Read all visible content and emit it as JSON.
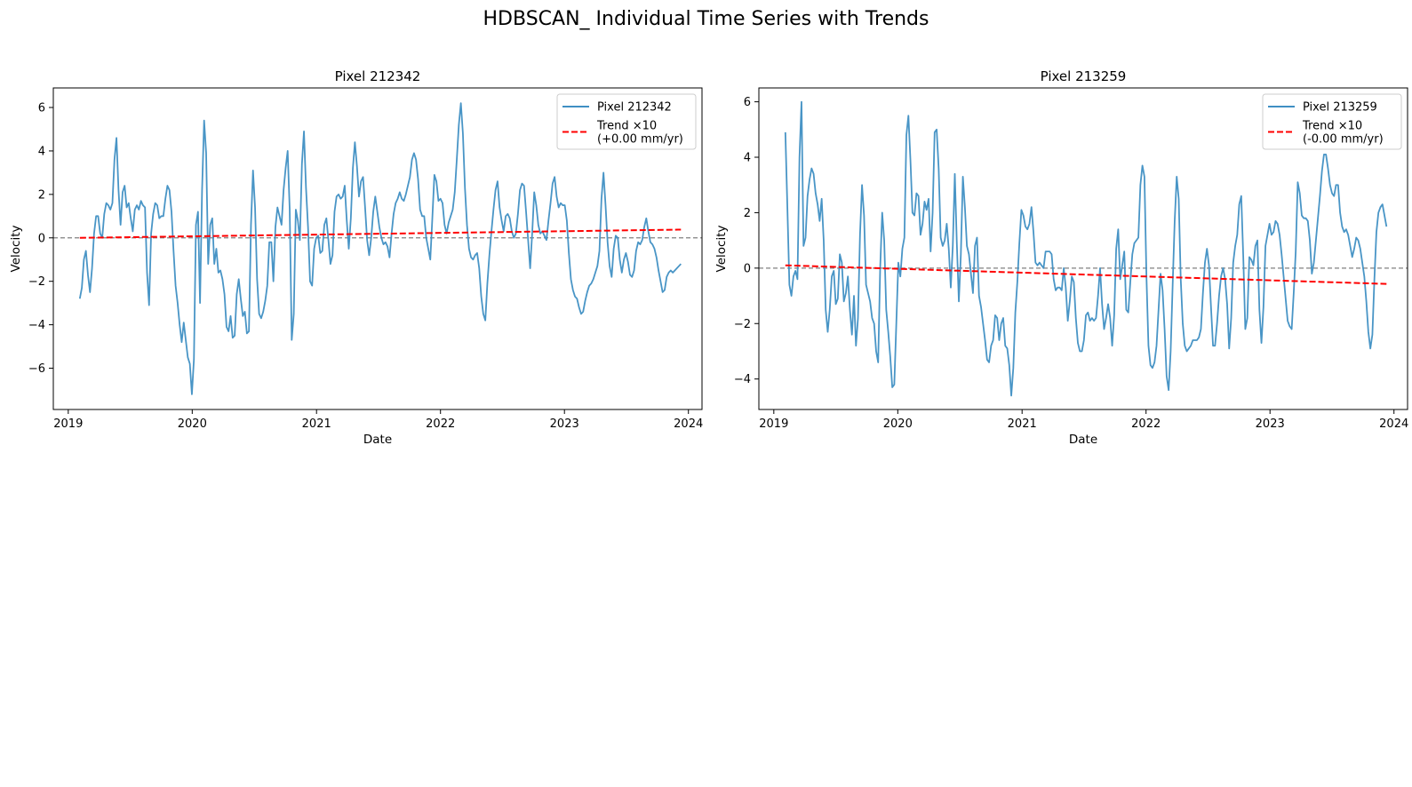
{
  "figure": {
    "title": "HDBSCAN_ Individual Time Series with Trends"
  },
  "chart_data": [
    {
      "type": "line",
      "title": "Pixel 212342",
      "xlabel": "Date",
      "ylabel": "Velocity",
      "x_ticks": [
        "2019",
        "2020",
        "2021",
        "2022",
        "2023",
        "2024"
      ],
      "y_ticks": [
        -6,
        -4,
        -2,
        0,
        2,
        4,
        6
      ],
      "xlim": [
        "2018-11-18",
        "2024-02-10"
      ],
      "ylim": [
        -7.9,
        6.9
      ],
      "grid": false,
      "legend_position": "upper right",
      "zero_line": 0,
      "series": [
        {
          "name": "Pixel 212342",
          "color": "#3f8fc3",
          "style": "solid",
          "x_start": "2019-02-04",
          "x_end": "2023-12-10",
          "values": [
            -2.8,
            -2.3,
            -1.0,
            -0.6,
            -1.7,
            -2.5,
            -1.4,
            0.2,
            1.0,
            1.0,
            0.2,
            0.0,
            1.1,
            1.6,
            1.5,
            1.3,
            1.6,
            3.6,
            4.6,
            2.2,
            0.6,
            2.1,
            2.4,
            1.4,
            1.6,
            0.9,
            0.3,
            1.3,
            1.5,
            1.3,
            1.7,
            1.5,
            1.4,
            -1.6,
            -3.1,
            0.2,
            1.1,
            1.6,
            1.5,
            0.9,
            1.0,
            1.0,
            1.8,
            2.4,
            2.2,
            1.2,
            -0.6,
            -2.2,
            -3.0,
            -4.0,
            -4.8,
            -3.9,
            -4.7,
            -5.5,
            -5.8,
            -7.2,
            -5.6,
            0.6,
            1.2,
            -3.0,
            2.2,
            5.4,
            3.9,
            -1.2,
            0.6,
            0.9,
            -1.2,
            -0.5,
            -1.6,
            -1.5,
            -1.9,
            -2.6,
            -4.1,
            -4.3,
            -3.6,
            -4.6,
            -4.5,
            -2.6,
            -1.9,
            -2.8,
            -3.6,
            -3.4,
            -4.4,
            -4.3,
            0.6,
            3.1,
            1.4,
            -1.9,
            -3.5,
            -3.7,
            -3.4,
            -2.9,
            -2.2,
            -0.2,
            -0.2,
            -2.0,
            0.5,
            1.4,
            1.0,
            0.6,
            2.2,
            3.2,
            4.0,
            1.3,
            -4.7,
            -3.5,
            1.3,
            0.8,
            -0.1,
            3.4,
            4.9,
            2.3,
            0.5,
            -2.0,
            -2.2,
            -0.5,
            0.0,
            0.1,
            -0.7,
            -0.6,
            0.6,
            0.9,
            -0.1,
            -1.2,
            -0.8,
            1.2,
            1.9,
            2.0,
            1.8,
            1.9,
            2.4,
            0.8,
            -0.5,
            0.9,
            3.2,
            4.4,
            3.3,
            1.9,
            2.6,
            2.8,
            1.4,
            -0.1,
            -0.8,
            0.0,
            1.2,
            1.9,
            1.2,
            0.5,
            0.0,
            -0.3,
            -0.2,
            -0.4,
            -0.9,
            0.2,
            1.1,
            1.6,
            1.8,
            2.1,
            1.8,
            1.7,
            2.0,
            2.4,
            2.8,
            3.6,
            3.9,
            3.6,
            2.7,
            1.3,
            1.0,
            1.0,
            0.0,
            -0.5,
            -1.0,
            0.9,
            2.9,
            2.6,
            1.7,
            1.8,
            1.6,
            0.6,
            0.2,
            0.7,
            1.0,
            1.3,
            2.1,
            3.6,
            5.2,
            6.2,
            4.8,
            2.3,
            0.6,
            -0.5,
            -0.9,
            -1.0,
            -0.8,
            -0.7,
            -1.4,
            -2.7,
            -3.5,
            -3.8,
            -2.1,
            -0.8,
            0.3,
            1.3,
            2.2,
            2.6,
            1.4,
            0.8,
            0.3,
            1.0,
            1.1,
            0.9,
            0.3,
            0.0,
            0.2,
            1.1,
            2.2,
            2.5,
            2.4,
            1.2,
            -0.1,
            -1.4,
            0.2,
            2.1,
            1.5,
            0.6,
            0.2,
            0.3,
            0.1,
            -0.1,
            0.8,
            1.6,
            2.5,
            2.8,
            1.9,
            1.4,
            1.6,
            1.5,
            1.5,
            0.8,
            -0.7,
            -1.9,
            -2.4,
            -2.7,
            -2.8,
            -3.2,
            -3.5,
            -3.4,
            -2.9,
            -2.5,
            -2.2,
            -2.1,
            -1.9,
            -1.6,
            -1.3,
            -0.6,
            1.8,
            3.0,
            1.5,
            -0.2,
            -1.3,
            -1.8,
            -0.5,
            0.1,
            0.0,
            -1.0,
            -1.6,
            -1.0,
            -0.7,
            -1.1,
            -1.7,
            -1.8,
            -1.5,
            -0.6,
            -0.2,
            -0.3,
            -0.1,
            0.5,
            0.9,
            0.3,
            -0.2,
            -0.3,
            -0.5,
            -0.9,
            -1.5,
            -2.0,
            -2.5,
            -2.4,
            -1.8,
            -1.6,
            -1.5,
            -1.6,
            -1.5,
            -1.4,
            -1.3,
            -1.2
          ]
        },
        {
          "name": "Trend ×10\n(+0.00 mm/yr)",
          "color": "#ff0000",
          "style": "dashed",
          "x": [
            "2019-02-04",
            "2023-12-10"
          ],
          "values": [
            0.0,
            0.38
          ]
        }
      ]
    },
    {
      "type": "line",
      "title": "Pixel 213259",
      "xlabel": "Date",
      "ylabel": "Velocity",
      "x_ticks": [
        "2019",
        "2020",
        "2021",
        "2022",
        "2023",
        "2024"
      ],
      "y_ticks": [
        -4,
        -2,
        0,
        2,
        4,
        6
      ],
      "xlim": [
        "2018-11-18",
        "2024-02-10"
      ],
      "ylim": [
        -5.1,
        6.5
      ],
      "grid": false,
      "legend_position": "upper right",
      "zero_line": 0,
      "series": [
        {
          "name": "Pixel 213259",
          "color": "#3f8fc3",
          "style": "solid",
          "x_start": "2019-02-04",
          "x_end": "2023-12-10",
          "values": [
            4.9,
            2.2,
            -0.6,
            -1.0,
            -0.3,
            -0.1,
            -0.4,
            4.0,
            6.0,
            0.8,
            1.1,
            2.6,
            3.2,
            3.6,
            3.4,
            2.7,
            2.3,
            1.7,
            2.5,
            1.0,
            -1.5,
            -2.3,
            -1.5,
            -0.3,
            -0.1,
            -1.3,
            -1.1,
            0.5,
            0.2,
            -1.2,
            -0.9,
            -0.3,
            -1.5,
            -2.4,
            -1.0,
            -2.8,
            -1.8,
            1.2,
            3.0,
            1.9,
            -0.6,
            -0.9,
            -1.2,
            -1.8,
            -2.0,
            -3.0,
            -3.4,
            0.0,
            2.0,
            1.0,
            -1.5,
            -2.3,
            -3.2,
            -4.3,
            -4.2,
            -2.0,
            0.2,
            -0.3,
            0.7,
            1.1,
            4.8,
            5.5,
            3.9,
            2.0,
            1.9,
            2.7,
            2.6,
            1.2,
            1.6,
            2.4,
            2.1,
            2.5,
            0.6,
            2.0,
            4.9,
            5.0,
            3.6,
            1.1,
            0.8,
            1.0,
            1.6,
            0.7,
            -0.7,
            0.8,
            3.4,
            0.9,
            -1.2,
            0.5,
            3.3,
            2.2,
            0.8,
            0.5,
            -0.2,
            -0.9,
            0.8,
            1.1,
            -1.0,
            -1.4,
            -2.0,
            -2.6,
            -3.3,
            -3.4,
            -2.8,
            -2.6,
            -1.7,
            -1.8,
            -2.6,
            -2.0,
            -1.8,
            -2.8,
            -2.9,
            -3.5,
            -4.6,
            -3.6,
            -1.6,
            -0.5,
            0.9,
            2.1,
            1.9,
            1.5,
            1.4,
            1.6,
            2.2,
            1.3,
            0.2,
            0.1,
            0.2,
            0.1,
            0.0,
            0.6,
            0.6,
            0.6,
            0.5,
            -0.4,
            -0.8,
            -0.7,
            -0.7,
            -0.8,
            0.0,
            -0.7,
            -1.9,
            -1.2,
            -0.3,
            -0.5,
            -1.8,
            -2.7,
            -3.0,
            -3.0,
            -2.6,
            -1.7,
            -1.6,
            -1.9,
            -1.8,
            -1.9,
            -1.8,
            -1.0,
            0.0,
            -1.3,
            -2.2,
            -1.8,
            -1.3,
            -1.8,
            -2.8,
            -1.7,
            0.7,
            1.4,
            -0.4,
            0.1,
            0.6,
            -1.5,
            -1.6,
            -0.5,
            0.5,
            0.9,
            1.0,
            1.1,
            3.0,
            3.7,
            3.3,
            -0.3,
            -2.8,
            -3.5,
            -3.6,
            -3.4,
            -2.8,
            -1.5,
            -0.2,
            -0.8,
            -2.2,
            -3.9,
            -4.4,
            -3.0,
            -0.6,
            1.7,
            3.3,
            2.5,
            -0.4,
            -2.0,
            -2.8,
            -3.0,
            -2.9,
            -2.8,
            -2.6,
            -2.6,
            -2.6,
            -2.5,
            -2.2,
            -0.9,
            0.2,
            0.7,
            0.1,
            -1.4,
            -2.8,
            -2.8,
            -2.0,
            -1.0,
            -0.3,
            0.0,
            -0.4,
            -1.3,
            -2.9,
            -1.8,
            0.2,
            0.8,
            1.2,
            2.3,
            2.6,
            0.4,
            -2.2,
            -1.8,
            0.4,
            0.3,
            0.1,
            0.8,
            1.0,
            -1.5,
            -2.7,
            -1.4,
            0.8,
            1.2,
            1.6,
            1.2,
            1.3,
            1.7,
            1.6,
            1.2,
            0.5,
            -0.3,
            -1.1,
            -1.9,
            -2.1,
            -2.2,
            -0.9,
            0.6,
            3.1,
            2.7,
            1.9,
            1.8,
            1.8,
            1.7,
            1.0,
            -0.2,
            0.2,
            1.0,
            1.8,
            2.6,
            3.5,
            4.1,
            4.1,
            3.6,
            3.0,
            2.7,
            2.6,
            3.0,
            3.0,
            2.0,
            1.5,
            1.3,
            1.4,
            1.2,
            0.8,
            0.4,
            0.7,
            1.1,
            1.0,
            0.7,
            0.2,
            -0.3,
            -1.2,
            -2.3,
            -2.9,
            -2.4,
            -0.4,
            1.3,
            2.0,
            2.2,
            2.3,
            1.9,
            1.5
          ]
        },
        {
          "name": "Trend ×10\n(-0.00 mm/yr)",
          "color": "#ff0000",
          "style": "dashed",
          "x": [
            "2019-02-04",
            "2023-12-10"
          ],
          "values": [
            0.1,
            -0.57
          ]
        }
      ]
    }
  ]
}
